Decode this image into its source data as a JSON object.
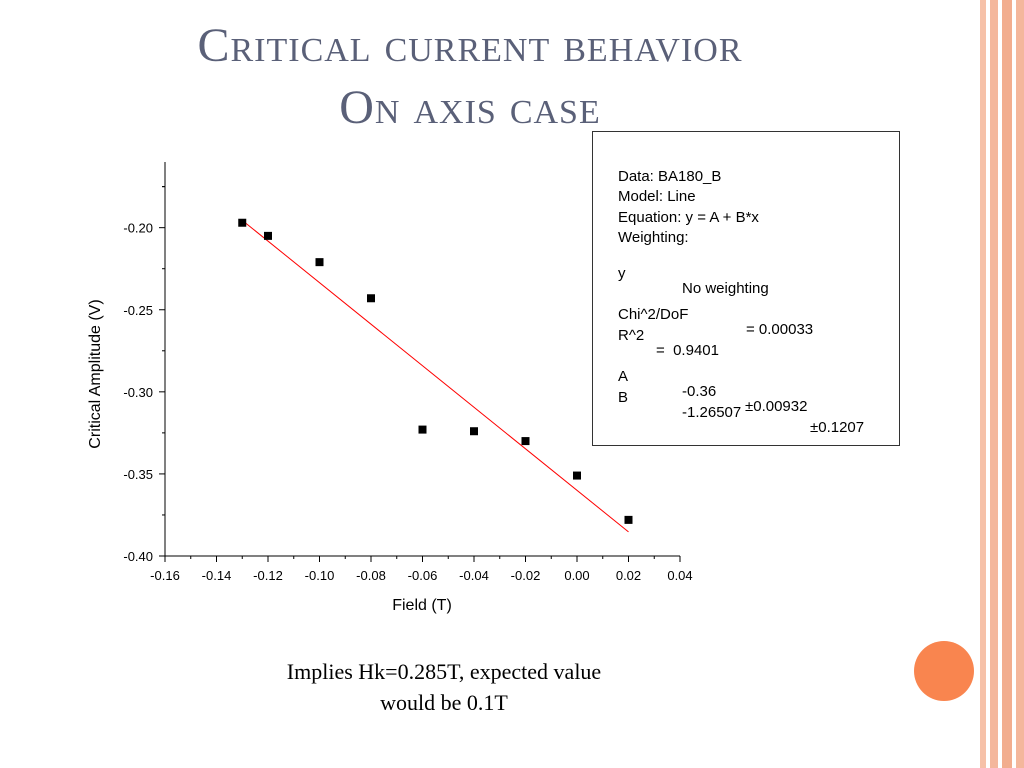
{
  "slide": {
    "title_line1": "Critical current behavior",
    "title_line2": "On axis case",
    "caption_line1": "Implies Hk=0.285T, expected value",
    "caption_line2": "would be 0.1T",
    "accent_color": "#f9854f"
  },
  "fit_box": {
    "data": "Data: BA180_B",
    "model": "Model: Line",
    "equation": "Equation: y = A + B*x",
    "weighting": "Weighting:",
    "y_label": "y",
    "y_value": "No weighting",
    "chi_label": "Chi^2/DoF",
    "chi_value": "= 0.00033",
    "r2_label": "R^2",
    "r2_value": "=  0.9401",
    "a_label": "A",
    "a_value": "-0.36",
    "a_err": "±0.00932",
    "b_label": "B",
    "b_value": "-1.26507",
    "b_err": "±0.1207"
  },
  "chart_data": {
    "type": "scatter",
    "title": "",
    "xlabel": "Field (T)",
    "ylabel": "Critical Amplitude (V)",
    "xlim": [
      -0.16,
      0.04
    ],
    "ylim": [
      -0.4,
      -0.16
    ],
    "x_ticks": [
      "-0.16",
      "-0.14",
      "-0.12",
      "-0.10",
      "-0.08",
      "-0.06",
      "-0.04",
      "-0.02",
      "0.00",
      "0.02",
      "0.04"
    ],
    "y_ticks": [
      "-0.20",
      "-0.25",
      "-0.30",
      "-0.35",
      "-0.40"
    ],
    "grid": false,
    "points": [
      {
        "x": -0.13,
        "y": -0.197
      },
      {
        "x": -0.12,
        "y": -0.205
      },
      {
        "x": -0.1,
        "y": -0.221
      },
      {
        "x": -0.08,
        "y": -0.243
      },
      {
        "x": -0.06,
        "y": -0.323
      },
      {
        "x": -0.04,
        "y": -0.324
      },
      {
        "x": -0.02,
        "y": -0.33
      },
      {
        "x": 0.0,
        "y": -0.351
      },
      {
        "x": 0.02,
        "y": -0.378
      }
    ],
    "fit_line": {
      "intercept": -0.36,
      "slope": -1.26507,
      "x_range": [
        -0.13,
        0.02
      ],
      "color": "#ff0000"
    },
    "marker_color": "#000000"
  }
}
